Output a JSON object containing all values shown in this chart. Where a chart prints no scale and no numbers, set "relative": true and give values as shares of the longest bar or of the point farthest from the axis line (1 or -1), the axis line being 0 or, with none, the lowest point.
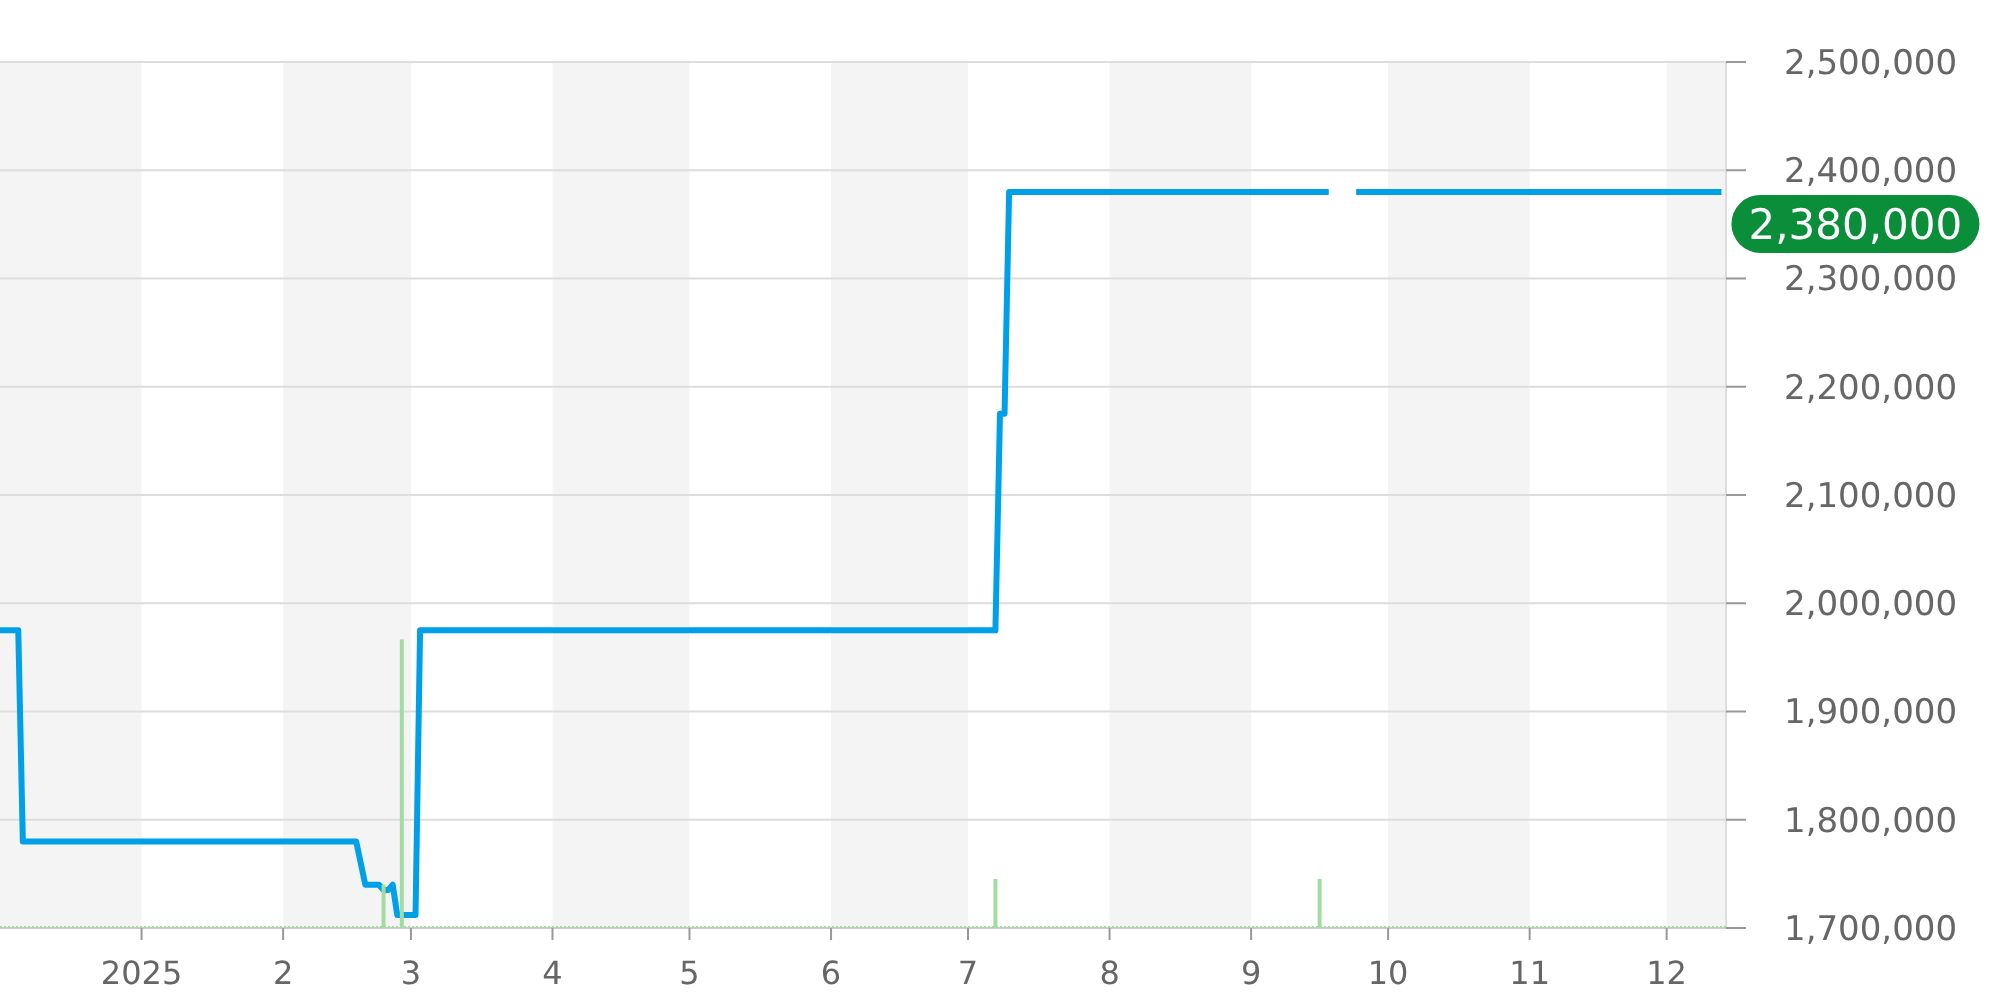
{
  "chart_data": [
    {
      "type": "line",
      "xlim": [
        "2024-12-01",
        "2025-12-14"
      ],
      "xticks": [
        {
          "value": "2025-01-01",
          "label": "2025"
        },
        {
          "value": "2025-02-01",
          "label": "2"
        },
        {
          "value": "2025-03-01",
          "label": "3"
        },
        {
          "value": "2025-04-01",
          "label": "4"
        },
        {
          "value": "2025-05-01",
          "label": "5"
        },
        {
          "value": "2025-06-01",
          "label": "6"
        },
        {
          "value": "2025-07-01",
          "label": "7"
        },
        {
          "value": "2025-08-01",
          "label": "8"
        },
        {
          "value": "2025-09-01",
          "label": "9"
        },
        {
          "value": "2025-10-01",
          "label": "10"
        },
        {
          "value": "2025-11-01",
          "label": "11"
        },
        {
          "value": "2025-12-01",
          "label": "12"
        }
      ],
      "ylim": [
        1700000,
        2500000
      ],
      "yticks": [
        {
          "value": 1700000,
          "label": "1,700,000"
        },
        {
          "value": 1800000,
          "label": "1,800,000"
        },
        {
          "value": 1900000,
          "label": "1,900,000"
        },
        {
          "value": 2000000,
          "label": "2,000,000"
        },
        {
          "value": 2100000,
          "label": "2,100,000"
        },
        {
          "value": 2200000,
          "label": "2,200,000"
        },
        {
          "value": 2300000,
          "label": "2,300,000"
        },
        {
          "value": 2400000,
          "label": "2,400,000"
        },
        {
          "value": 2500000,
          "label": "2,500,000"
        }
      ],
      "grid": "y",
      "line_style": "solid",
      "bands": [
        {
          "axis": "x",
          "from": "2024-12-01",
          "to": "2025-01-01",
          "color": "#f4f4f4"
        },
        {
          "axis": "x",
          "from": "2025-02-01",
          "to": "2025-03-01",
          "color": "#f4f4f4"
        },
        {
          "axis": "x",
          "from": "2025-04-01",
          "to": "2025-05-01",
          "color": "#f4f4f4"
        },
        {
          "axis": "x",
          "from": "2025-06-01",
          "to": "2025-07-01",
          "color": "#f4f4f4"
        },
        {
          "axis": "x",
          "from": "2025-08-01",
          "to": "2025-09-01",
          "color": "#f4f4f4"
        },
        {
          "axis": "x",
          "from": "2025-10-01",
          "to": "2025-11-01",
          "color": "#f4f4f4"
        },
        {
          "axis": "x",
          "from": "2025-12-01",
          "to": "2025-12-14",
          "color": "#f4f4f4"
        }
      ],
      "series": [
        {
          "type": "line",
          "color": "#00a0e9",
          "x": [
            "2024-12-01",
            "2024-12-05",
            "2024-12-06",
            "2025-02-17",
            "2025-02-19",
            "2025-02-22",
            "2025-02-23",
            "2025-02-24",
            "2025-02-25",
            "2025-02-26",
            "2025-03-02",
            "2025-03-03",
            "2025-07-07",
            "2025-07-08",
            "2025-07-09",
            "2025-07-10",
            "2025-09-18",
            "2025-09-21",
            "2025-09-24",
            "2025-12-13"
          ],
          "values": [
            1975000,
            1975000,
            1780000,
            1780000,
            1740000,
            1740000,
            1735000,
            1735000,
            1740000,
            1712000,
            1712000,
            1975000,
            1975000,
            2175000,
            2175000,
            2380000,
            2380000,
            null,
            2380000,
            2380000
          ]
        }
      ],
      "annotations": [
        {
          "text": "2,380,000",
          "x": "2025-12-13",
          "y": 2380000
        }
      ]
    },
    {
      "type": "bar",
      "relative": true,
      "xlim": [
        "2024-12-01",
        "2025-12-14"
      ],
      "x": [
        "2025-02-23",
        "2025-02-27",
        "2025-07-07",
        "2025-09-16"
      ],
      "values": [
        0.15,
        1,
        0.17,
        0.17
      ],
      "color": "#a3dca3"
    }
  ]
}
